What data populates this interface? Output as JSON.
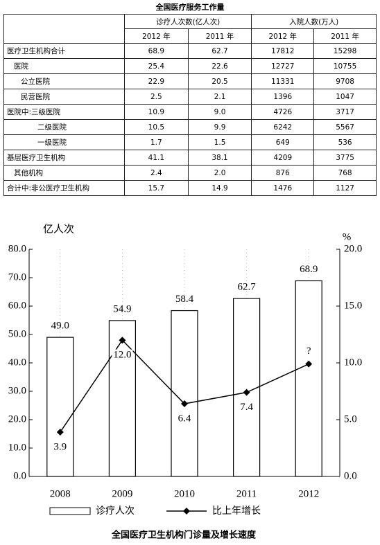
{
  "table": {
    "title": "全国医疗服务工作量",
    "header": [
      "诊疗人次数(亿人次)",
      "入院人数(万人)"
    ],
    "subheader": [
      "2012 年",
      "2011 年",
      "2012 年",
      "2011 年"
    ],
    "rows": [
      [
        "医疗卫生机构合计",
        "68.9",
        "62.7",
        "17812",
        "15298"
      ],
      [
        "医院",
        "25.4",
        "22.6",
        "12727",
        "10755"
      ],
      [
        "公立医院",
        "22.9",
        "20.5",
        "11331",
        "9708"
      ],
      [
        "民营医院",
        "2.5",
        "2.1",
        "1396",
        "1047"
      ],
      [
        "医院中:三级医院",
        "10.9",
        "9.0",
        "4726",
        "3717"
      ],
      [
        "二级医院",
        "10.5",
        "9.9",
        "6242",
        "5567"
      ],
      [
        "一级医院",
        "1.7",
        "1.5",
        "649",
        "536"
      ],
      [
        "基层医疗卫生机构",
        "41.1",
        "38.1",
        "4209",
        "3775"
      ],
      [
        "其他机构",
        "2.4",
        "2.0",
        "876",
        "768"
      ],
      [
        "合计中:非公医疗卫生机构",
        "15.7",
        "14.9",
        "1476",
        "1127"
      ]
    ]
  },
  "chart_data": {
    "type": "bar-line",
    "title": "全国医疗卫生机构门诊量及增长速度",
    "y_label": "亿人次",
    "y2_label": "%",
    "categories": [
      "2008",
      "2009",
      "2010",
      "2011",
      "2012"
    ],
    "series": [
      {
        "name": "诊疗人次",
        "type": "bar",
        "color": "#ffffff",
        "values": [
          49.0,
          54.9,
          58.4,
          62.7,
          68.9
        ],
        "value_labels": [
          "49.0",
          "54.9",
          "58.4",
          "62.7",
          "68.9"
        ]
      },
      {
        "name": "比上年增长",
        "type": "line",
        "axis": "y2",
        "color": "#000000",
        "values": [
          3.9,
          12.0,
          6.4,
          7.4,
          9.9
        ],
        "value_labels": [
          "3.9",
          "12.0",
          "6.4",
          "7.4",
          "?"
        ]
      }
    ],
    "ylim": [
      0,
      80
    ],
    "yticks": [
      {
        "value": 0,
        "label": "0.0"
      },
      {
        "value": 10,
        "label": "10.0"
      },
      {
        "value": 20,
        "label": "20.0"
      },
      {
        "value": 30,
        "label": "30.0"
      },
      {
        "value": 40,
        "label": "40.0"
      },
      {
        "value": 50,
        "label": "50.0"
      },
      {
        "value": 60,
        "label": "60.0"
      },
      {
        "value": 70,
        "label": "70.0"
      },
      {
        "value": 80,
        "label": "80.0"
      }
    ],
    "y2lim": [
      0,
      20
    ],
    "y2ticks": [
      {
        "value": 0,
        "label": "0.0"
      },
      {
        "value": 5,
        "label": "5.0"
      },
      {
        "value": 10,
        "label": "10.0"
      },
      {
        "value": 15,
        "label": "15.0"
      },
      {
        "value": 20,
        "label": "20.0"
      }
    ]
  }
}
